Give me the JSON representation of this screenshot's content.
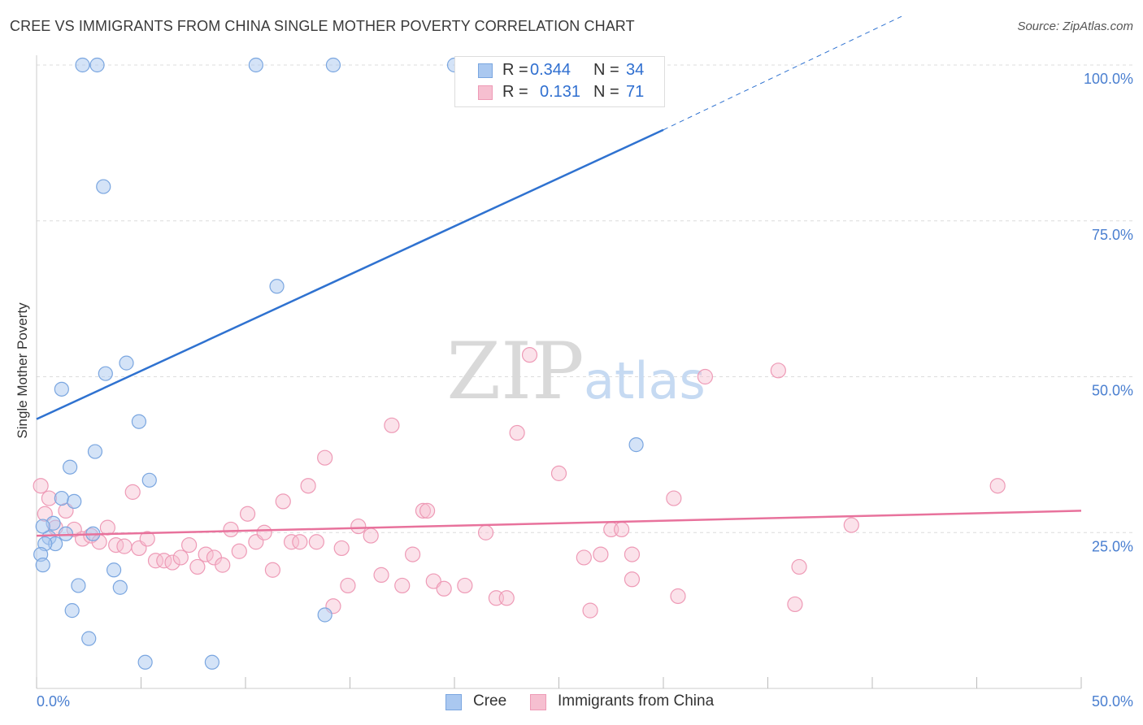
{
  "header": {
    "title": "CREE VS IMMIGRANTS FROM CHINA SINGLE MOTHER POVERTY CORRELATION CHART",
    "source": "Source: ZipAtlas.com"
  },
  "watermark": {
    "zip": "ZIP",
    "atlas": "atlas"
  },
  "legend": {
    "rows": [
      {
        "r_label": "R =",
        "r_value": "0.344",
        "n_label": "N =",
        "n_value": "34"
      },
      {
        "r_label": "R =",
        "r_value": "0.131",
        "n_label": "N =",
        "n_value": "71"
      }
    ]
  },
  "bottom_legend": {
    "cree": "Cree",
    "china": "Immigrants from China"
  },
  "colors": {
    "cree_fill": "#aac8f0",
    "cree_stroke": "#7aa6e0",
    "cree_line": "#2f72d0",
    "china_fill": "#f6bfd0",
    "china_stroke": "#ee9ab6",
    "china_line": "#e8729c",
    "tick_label": "#4a7fd0"
  },
  "chart_data": {
    "type": "scatter",
    "title": "CREE VS IMMIGRANTS FROM CHINA SINGLE MOTHER POVERTY CORRELATION CHART",
    "xlabel": "",
    "ylabel": "Single Mother Poverty",
    "xlim": [
      0,
      50
    ],
    "ylim": [
      0,
      100
    ],
    "x_tick_labels": [
      "0.0%",
      "50.0%"
    ],
    "y_ticks": [
      25,
      50,
      75,
      100
    ],
    "y_tick_labels": [
      "25.0%",
      "50.0%",
      "75.0%",
      "100.0%"
    ],
    "grid": true,
    "series": [
      {
        "name": "Cree",
        "R": 0.344,
        "N": 34,
        "trend": {
          "x0": 0,
          "y0": 43.2,
          "x1": 30,
          "y1": 89.6,
          "dash_to_x": 41.4,
          "dash_to_y": 107.8
        },
        "points": [
          [
            2.2,
            100
          ],
          [
            2.9,
            100
          ],
          [
            10.5,
            100
          ],
          [
            14.2,
            100
          ],
          [
            20.0,
            100
          ],
          [
            3.2,
            80.5
          ],
          [
            11.5,
            64.5
          ],
          [
            4.3,
            52.2
          ],
          [
            3.3,
            50.5
          ],
          [
            1.2,
            48.0
          ],
          [
            4.9,
            42.8
          ],
          [
            2.8,
            38.0
          ],
          [
            1.6,
            35.5
          ],
          [
            5.4,
            33.4
          ],
          [
            1.2,
            30.5
          ],
          [
            1.8,
            30.0
          ],
          [
            0.8,
            26.5
          ],
          [
            1.4,
            24.8
          ],
          [
            0.6,
            24.2
          ],
          [
            0.9,
            23.2
          ],
          [
            2.7,
            24.8
          ],
          [
            0.4,
            23.2
          ],
          [
            0.2,
            21.5
          ],
          [
            0.3,
            19.8
          ],
          [
            3.7,
            19.0
          ],
          [
            2.0,
            16.5
          ],
          [
            4.0,
            16.2
          ],
          [
            1.7,
            12.5
          ],
          [
            2.5,
            8.0
          ],
          [
            5.2,
            4.2
          ],
          [
            8.4,
            4.2
          ],
          [
            13.8,
            11.8
          ],
          [
            28.7,
            39.1
          ],
          [
            0.3,
            26.0
          ]
        ]
      },
      {
        "name": "Immigrants from China",
        "R": 0.131,
        "N": 71,
        "trend": {
          "x0": 0,
          "y0": 24.5,
          "x1": 50,
          "y1": 28.5
        },
        "points": [
          [
            0.2,
            32.5
          ],
          [
            0.4,
            28.0
          ],
          [
            0.6,
            30.5
          ],
          [
            0.9,
            25.8
          ],
          [
            1.4,
            28.5
          ],
          [
            1.8,
            25.5
          ],
          [
            2.2,
            24.0
          ],
          [
            2.6,
            24.5
          ],
          [
            3.0,
            23.5
          ],
          [
            3.4,
            25.8
          ],
          [
            3.8,
            23.0
          ],
          [
            4.2,
            22.8
          ],
          [
            4.6,
            31.5
          ],
          [
            4.9,
            22.5
          ],
          [
            5.3,
            24.0
          ],
          [
            5.7,
            20.5
          ],
          [
            6.1,
            20.5
          ],
          [
            6.5,
            20.2
          ],
          [
            6.9,
            21.0
          ],
          [
            7.3,
            23.0
          ],
          [
            7.7,
            19.5
          ],
          [
            8.1,
            21.5
          ],
          [
            8.5,
            21.0
          ],
          [
            8.9,
            19.8
          ],
          [
            9.3,
            25.5
          ],
          [
            9.7,
            22.0
          ],
          [
            10.1,
            28.0
          ],
          [
            10.5,
            23.5
          ],
          [
            10.9,
            25.0
          ],
          [
            11.3,
            19.0
          ],
          [
            11.8,
            30.0
          ],
          [
            12.2,
            23.5
          ],
          [
            12.6,
            23.5
          ],
          [
            13.0,
            32.5
          ],
          [
            13.4,
            23.5
          ],
          [
            13.8,
            37.0
          ],
          [
            14.2,
            13.2
          ],
          [
            14.6,
            22.5
          ],
          [
            14.9,
            16.5
          ],
          [
            15.4,
            26.0
          ],
          [
            16.0,
            24.5
          ],
          [
            16.5,
            18.2
          ],
          [
            17.0,
            42.2
          ],
          [
            17.5,
            16.5
          ],
          [
            18.0,
            21.5
          ],
          [
            18.5,
            28.5
          ],
          [
            18.7,
            28.5
          ],
          [
            19.0,
            17.2
          ],
          [
            19.5,
            16.0
          ],
          [
            20.5,
            16.5
          ],
          [
            21.5,
            25.0
          ],
          [
            22.0,
            14.5
          ],
          [
            22.5,
            14.5
          ],
          [
            23.0,
            41.0
          ],
          [
            23.6,
            53.5
          ],
          [
            25.0,
            34.5
          ],
          [
            26.2,
            21.0
          ],
          [
            26.5,
            12.5
          ],
          [
            27.0,
            21.5
          ],
          [
            27.5,
            25.5
          ],
          [
            28.0,
            25.5
          ],
          [
            28.5,
            21.5
          ],
          [
            28.5,
            17.5
          ],
          [
            30.5,
            30.5
          ],
          [
            30.7,
            14.8
          ],
          [
            32.0,
            50.0
          ],
          [
            35.5,
            51.0
          ],
          [
            36.5,
            19.5
          ],
          [
            36.3,
            13.5
          ],
          [
            39.0,
            26.2
          ],
          [
            46.0,
            32.5
          ]
        ]
      }
    ]
  }
}
